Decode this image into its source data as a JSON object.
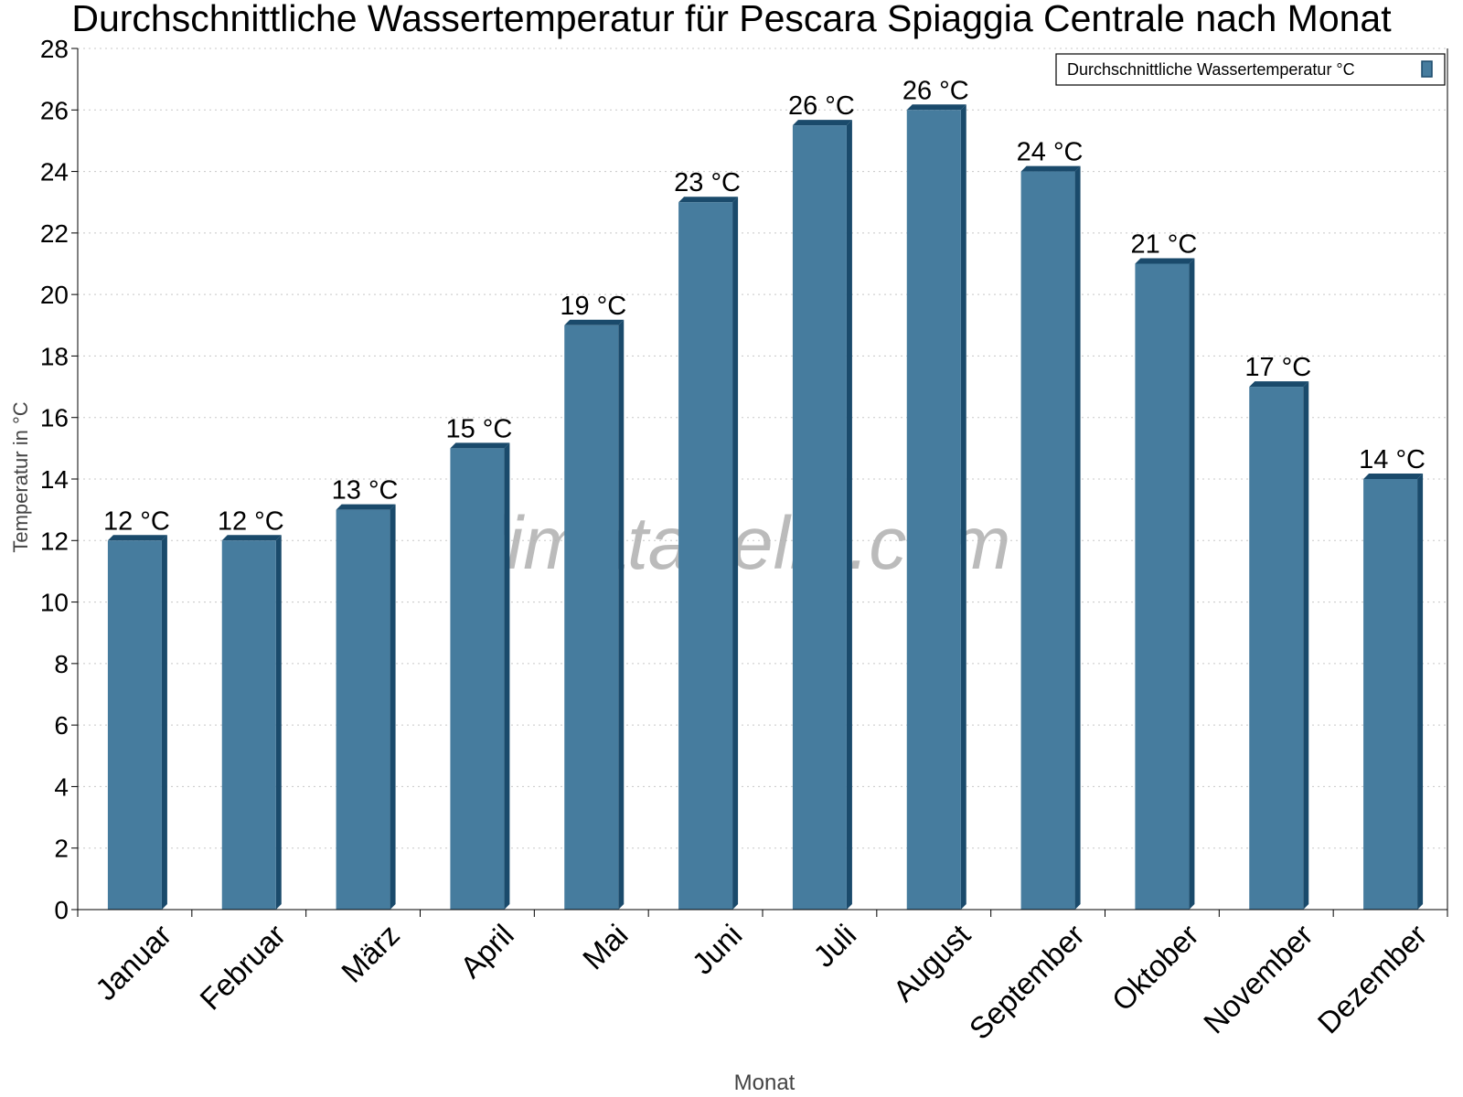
{
  "chart_data": {
    "type": "bar",
    "title": "Durchschnittliche Wassertemperatur für Pescara Spiaggia Centrale nach Monat",
    "xlabel": "Monat",
    "ylabel": "Temperatur in °C",
    "ylim": [
      0,
      28
    ],
    "yticks": [
      0,
      2,
      4,
      6,
      8,
      10,
      12,
      14,
      16,
      18,
      20,
      22,
      24,
      26,
      28
    ],
    "grid": true,
    "legend_position": "top-right",
    "categories": [
      "Januar",
      "Februar",
      "März",
      "April",
      "Mai",
      "Juni",
      "Juli",
      "August",
      "September",
      "Oktober",
      "November",
      "Dezember"
    ],
    "series": [
      {
        "name": "Durchschnittliche Wassertemperatur °C",
        "values": [
          12,
          12,
          13,
          15,
          19,
          23,
          25.5,
          26,
          24,
          21,
          17,
          14
        ],
        "labels": [
          "12 °C",
          "12 °C",
          "13 °C",
          "15 °C",
          "19 °C",
          "23 °C",
          "26 °C",
          "26 °C",
          "24 °C",
          "21 °C",
          "17 °C",
          "14 °C"
        ],
        "color": "#467c9e",
        "shade_color": "#1a4a6b"
      }
    ],
    "watermark": "klimatabelle.com"
  }
}
